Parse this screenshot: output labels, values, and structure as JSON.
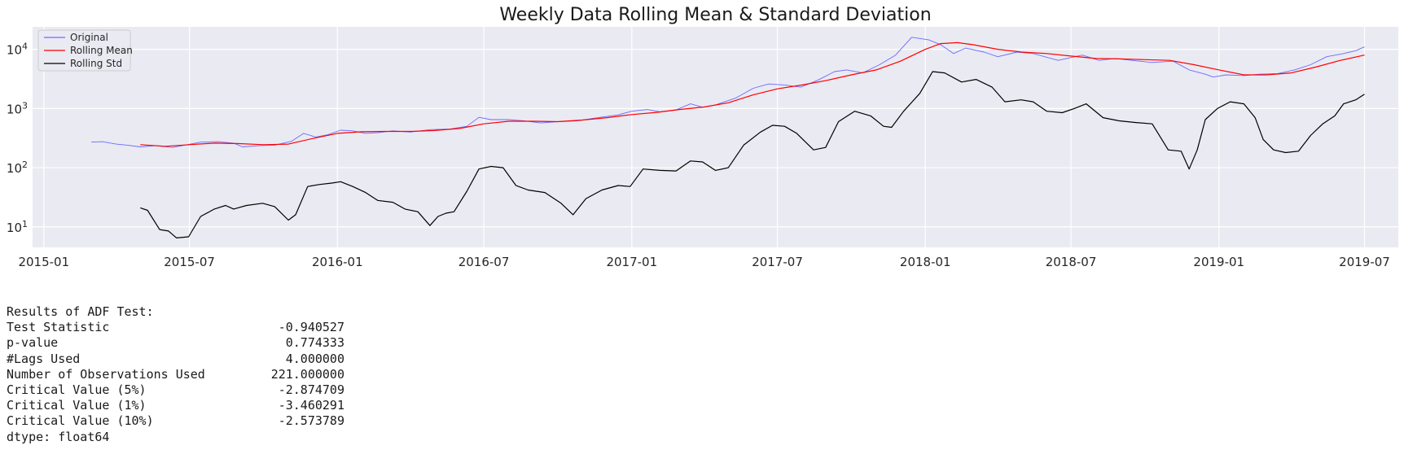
{
  "chart_data": {
    "type": "line",
    "title": "Weekly Data Rolling Mean & Standard Deviation",
    "xlabel": "",
    "ylabel": "",
    "yscale": "log",
    "ylim": [
      4.5,
      24000
    ],
    "xlim": [
      "2014-12-18",
      "2019-08-12"
    ],
    "grid": true,
    "legend_position": "top-left",
    "x_ticks": [
      "2015-01",
      "2015-07",
      "2016-01",
      "2016-07",
      "2017-01",
      "2017-07",
      "2018-01",
      "2018-07",
      "2019-01",
      "2019-07"
    ],
    "y_ticks": [
      {
        "base": "10",
        "exp": "1",
        "value": 10
      },
      {
        "base": "10",
        "exp": "2",
        "value": 100
      },
      {
        "base": "10",
        "exp": "3",
        "value": 1000
      },
      {
        "base": "10",
        "exp": "4",
        "value": 10000
      }
    ],
    "series": [
      {
        "name": "Original",
        "color": "#6a6aff",
        "points": [
          [
            "2015-03-01",
            270
          ],
          [
            "2015-03-15",
            275
          ],
          [
            "2015-04-01",
            250
          ],
          [
            "2015-04-15",
            240
          ],
          [
            "2015-05-01",
            225
          ],
          [
            "2015-05-20",
            235
          ],
          [
            "2015-06-10",
            220
          ],
          [
            "2015-06-25",
            240
          ],
          [
            "2015-07-15",
            270
          ],
          [
            "2015-08-05",
            275
          ],
          [
            "2015-08-25",
            260
          ],
          [
            "2015-09-05",
            225
          ],
          [
            "2015-09-25",
            235
          ],
          [
            "2015-10-15",
            240
          ],
          [
            "2015-11-05",
            280
          ],
          [
            "2015-11-20",
            380
          ],
          [
            "2015-12-05",
            330
          ],
          [
            "2015-12-20",
            360
          ],
          [
            "2016-01-05",
            430
          ],
          [
            "2016-01-20",
            420
          ],
          [
            "2016-02-05",
            380
          ],
          [
            "2016-02-20",
            390
          ],
          [
            "2016-03-10",
            420
          ],
          [
            "2016-04-01",
            400
          ],
          [
            "2016-04-25",
            440
          ],
          [
            "2016-05-20",
            450
          ],
          [
            "2016-06-10",
            500
          ],
          [
            "2016-06-25",
            710
          ],
          [
            "2016-07-10",
            650
          ],
          [
            "2016-08-01",
            650
          ],
          [
            "2016-08-20",
            620
          ],
          [
            "2016-09-10",
            570
          ],
          [
            "2016-10-01",
            600
          ],
          [
            "2016-10-25",
            620
          ],
          [
            "2016-11-20",
            700
          ],
          [
            "2016-12-15",
            780
          ],
          [
            "2017-01-01",
            900
          ],
          [
            "2017-01-20",
            960
          ],
          [
            "2017-02-05",
            880
          ],
          [
            "2017-02-25",
            950
          ],
          [
            "2017-03-15",
            1200
          ],
          [
            "2017-03-30",
            1050
          ],
          [
            "2017-04-15",
            1150
          ],
          [
            "2017-05-10",
            1500
          ],
          [
            "2017-06-01",
            2200
          ],
          [
            "2017-06-20",
            2600
          ],
          [
            "2017-07-10",
            2500
          ],
          [
            "2017-07-30",
            2300
          ],
          [
            "2017-08-20",
            3000
          ],
          [
            "2017-09-10",
            4200
          ],
          [
            "2017-09-25",
            4500
          ],
          [
            "2017-10-15",
            4000
          ],
          [
            "2017-11-05",
            5500
          ],
          [
            "2017-11-25",
            8000
          ],
          [
            "2017-12-15",
            16000
          ],
          [
            "2018-01-05",
            14500
          ],
          [
            "2018-01-20",
            12000
          ],
          [
            "2018-02-05",
            8500
          ],
          [
            "2018-02-20",
            10500
          ],
          [
            "2018-03-15",
            9000
          ],
          [
            "2018-04-01",
            7500
          ],
          [
            "2018-04-25",
            9000
          ],
          [
            "2018-05-15",
            8500
          ],
          [
            "2018-06-15",
            6500
          ],
          [
            "2018-07-15",
            8000
          ],
          [
            "2018-08-05",
            6500
          ],
          [
            "2018-08-25",
            7000
          ],
          [
            "2018-09-15",
            6500
          ],
          [
            "2018-10-10",
            6000
          ],
          [
            "2018-11-05",
            6300
          ],
          [
            "2018-11-25",
            4500
          ],
          [
            "2018-12-15",
            3800
          ],
          [
            "2018-12-25",
            3400
          ],
          [
            "2019-01-10",
            3700
          ],
          [
            "2019-02-01",
            3600
          ],
          [
            "2019-02-20",
            3800
          ],
          [
            "2019-03-15",
            3900
          ],
          [
            "2019-04-05",
            4500
          ],
          [
            "2019-04-25",
            5500
          ],
          [
            "2019-05-15",
            7500
          ],
          [
            "2019-06-05",
            8500
          ],
          [
            "2019-06-20",
            9500
          ],
          [
            "2019-07-01",
            11000
          ]
        ]
      },
      {
        "name": "Rolling Mean",
        "color": "#ff0000",
        "points": [
          [
            "2015-05-01",
            245
          ],
          [
            "2015-06-01",
            230
          ],
          [
            "2015-07-01",
            245
          ],
          [
            "2015-08-01",
            260
          ],
          [
            "2015-09-01",
            255
          ],
          [
            "2015-10-01",
            245
          ],
          [
            "2015-11-01",
            250
          ],
          [
            "2015-12-01",
            310
          ],
          [
            "2016-01-01",
            380
          ],
          [
            "2016-02-01",
            405
          ],
          [
            "2016-03-01",
            410
          ],
          [
            "2016-04-01",
            410
          ],
          [
            "2016-05-01",
            425
          ],
          [
            "2016-06-01",
            460
          ],
          [
            "2016-07-01",
            550
          ],
          [
            "2016-08-01",
            610
          ],
          [
            "2016-09-01",
            610
          ],
          [
            "2016-10-01",
            600
          ],
          [
            "2016-11-01",
            640
          ],
          [
            "2016-12-01",
            700
          ],
          [
            "2017-01-01",
            790
          ],
          [
            "2017-02-01",
            860
          ],
          [
            "2017-03-01",
            960
          ],
          [
            "2017-04-01",
            1060
          ],
          [
            "2017-05-01",
            1250
          ],
          [
            "2017-06-01",
            1700
          ],
          [
            "2017-07-01",
            2150
          ],
          [
            "2017-08-01",
            2500
          ],
          [
            "2017-09-01",
            3000
          ],
          [
            "2017-10-01",
            3700
          ],
          [
            "2017-11-01",
            4500
          ],
          [
            "2017-12-01",
            6300
          ],
          [
            "2018-01-01",
            10000
          ],
          [
            "2018-01-20",
            12500
          ],
          [
            "2018-02-10",
            13000
          ],
          [
            "2018-03-01",
            12000
          ],
          [
            "2018-04-01",
            10000
          ],
          [
            "2018-05-01",
            9000
          ],
          [
            "2018-06-01",
            8500
          ],
          [
            "2018-07-01",
            7700
          ],
          [
            "2018-08-01",
            7000
          ],
          [
            "2018-09-01",
            6900
          ],
          [
            "2018-10-01",
            6700
          ],
          [
            "2018-11-01",
            6500
          ],
          [
            "2018-12-01",
            5500
          ],
          [
            "2019-01-01",
            4500
          ],
          [
            "2019-02-01",
            3700
          ],
          [
            "2019-03-01",
            3700
          ],
          [
            "2019-04-01",
            4000
          ],
          [
            "2019-05-01",
            5000
          ],
          [
            "2019-06-01",
            6500
          ],
          [
            "2019-07-01",
            8000
          ]
        ]
      },
      {
        "name": "Rolling Std",
        "color": "#000000",
        "points": [
          [
            "2015-05-01",
            21
          ],
          [
            "2015-05-10",
            19
          ],
          [
            "2015-05-25",
            9
          ],
          [
            "2015-06-05",
            8.5
          ],
          [
            "2015-06-15",
            6.5
          ],
          [
            "2015-06-30",
            6.8
          ],
          [
            "2015-07-15",
            15
          ],
          [
            "2015-08-01",
            20
          ],
          [
            "2015-08-15",
            23
          ],
          [
            "2015-08-25",
            20
          ],
          [
            "2015-09-10",
            23
          ],
          [
            "2015-09-30",
            25
          ],
          [
            "2015-10-15",
            22
          ],
          [
            "2015-11-01",
            13
          ],
          [
            "2015-11-10",
            16
          ],
          [
            "2015-11-25",
            48
          ],
          [
            "2015-12-10",
            52
          ],
          [
            "2015-12-25",
            55
          ],
          [
            "2016-01-05",
            58
          ],
          [
            "2016-01-20",
            48
          ],
          [
            "2016-02-05",
            38
          ],
          [
            "2016-02-20",
            28
          ],
          [
            "2016-03-10",
            26
          ],
          [
            "2016-03-25",
            20
          ],
          [
            "2016-04-10",
            18
          ],
          [
            "2016-04-25",
            10.5
          ],
          [
            "2016-05-05",
            15
          ],
          [
            "2016-05-15",
            17
          ],
          [
            "2016-05-25",
            18
          ],
          [
            "2016-06-10",
            40
          ],
          [
            "2016-06-25",
            95
          ],
          [
            "2016-07-10",
            105
          ],
          [
            "2016-07-25",
            100
          ],
          [
            "2016-08-10",
            50
          ],
          [
            "2016-08-25",
            42
          ],
          [
            "2016-09-15",
            38
          ],
          [
            "2016-10-05",
            25
          ],
          [
            "2016-10-20",
            16
          ],
          [
            "2016-11-05",
            30
          ],
          [
            "2016-11-25",
            42
          ],
          [
            "2016-12-15",
            50
          ],
          [
            "2016-12-30",
            48
          ],
          [
            "2017-01-15",
            95
          ],
          [
            "2017-02-05",
            90
          ],
          [
            "2017-02-25",
            88
          ],
          [
            "2017-03-15",
            130
          ],
          [
            "2017-03-30",
            125
          ],
          [
            "2017-04-15",
            90
          ],
          [
            "2017-05-01",
            100
          ],
          [
            "2017-05-20",
            240
          ],
          [
            "2017-06-10",
            400
          ],
          [
            "2017-06-25",
            520
          ],
          [
            "2017-07-10",
            500
          ],
          [
            "2017-07-25",
            380
          ],
          [
            "2017-08-15",
            200
          ],
          [
            "2017-08-30",
            220
          ],
          [
            "2017-09-15",
            600
          ],
          [
            "2017-10-05",
            900
          ],
          [
            "2017-10-25",
            750
          ],
          [
            "2017-11-10",
            500
          ],
          [
            "2017-11-20",
            480
          ],
          [
            "2017-12-05",
            900
          ],
          [
            "2017-12-25",
            1800
          ],
          [
            "2018-01-10",
            4200
          ],
          [
            "2018-01-25",
            4000
          ],
          [
            "2018-02-15",
            2800
          ],
          [
            "2018-03-05",
            3100
          ],
          [
            "2018-03-25",
            2300
          ],
          [
            "2018-04-10",
            1300
          ],
          [
            "2018-04-30",
            1400
          ],
          [
            "2018-05-15",
            1300
          ],
          [
            "2018-06-01",
            900
          ],
          [
            "2018-06-20",
            850
          ],
          [
            "2018-07-05",
            1000
          ],
          [
            "2018-07-20",
            1200
          ],
          [
            "2018-08-10",
            700
          ],
          [
            "2018-08-30",
            620
          ],
          [
            "2018-09-20",
            580
          ],
          [
            "2018-10-10",
            550
          ],
          [
            "2018-10-30",
            200
          ],
          [
            "2018-11-15",
            190
          ],
          [
            "2018-11-25",
            95
          ],
          [
            "2018-12-05",
            200
          ],
          [
            "2018-12-15",
            650
          ],
          [
            "2018-12-30",
            1000
          ],
          [
            "2019-01-15",
            1300
          ],
          [
            "2019-02-01",
            1200
          ],
          [
            "2019-02-15",
            700
          ],
          [
            "2019-02-25",
            300
          ],
          [
            "2019-03-10",
            200
          ],
          [
            "2019-03-25",
            180
          ],
          [
            "2019-04-10",
            190
          ],
          [
            "2019-04-25",
            350
          ],
          [
            "2019-05-10",
            550
          ],
          [
            "2019-05-25",
            750
          ],
          [
            "2019-06-05",
            1200
          ],
          [
            "2019-06-20",
            1400
          ],
          [
            "2019-07-01",
            1750
          ]
        ]
      }
    ]
  },
  "adf": {
    "header": "Results of ADF Test:",
    "rows": [
      {
        "label": "Test Statistic",
        "value": "-0.940527"
      },
      {
        "label": "p-value",
        "value": "0.774333"
      },
      {
        "label": "#Lags Used",
        "value": "4.000000"
      },
      {
        "label": "Number of Observations Used",
        "value": "221.000000"
      },
      {
        "label": "Critical Value (5%)",
        "value": "-2.874709"
      },
      {
        "label": "Critical Value (1%)",
        "value": "-3.460291"
      },
      {
        "label": "Critical Value (10%)",
        "value": "-2.573789"
      }
    ],
    "dtype": "dtype: float64"
  }
}
